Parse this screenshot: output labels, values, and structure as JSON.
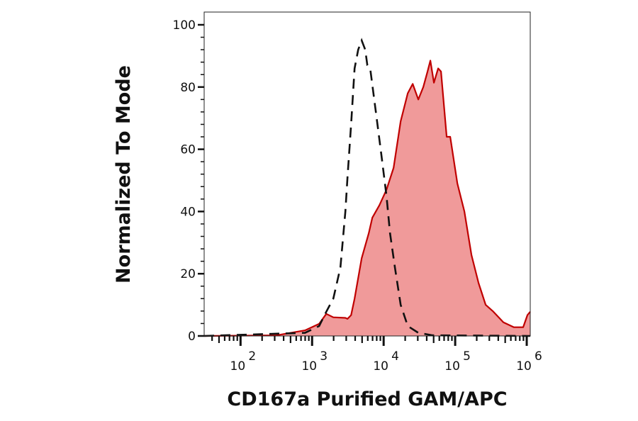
{
  "chart_data": {
    "type": "area",
    "title": "",
    "xlabel": "CD167a Purified GAM/APC",
    "ylabel": "Normalized To Mode",
    "xscale": "log",
    "xlim": [
      31,
      1120000
    ],
    "ylim": [
      0,
      100
    ],
    "grid": false,
    "x_tick_labels": [
      {
        "value": 100,
        "base": "10",
        "exp": "2"
      },
      {
        "value": 1000,
        "base": "10",
        "exp": "3"
      },
      {
        "value": 10000,
        "base": "10",
        "exp": "4"
      },
      {
        "value": 100000,
        "base": "10",
        "exp": "5"
      },
      {
        "value": 1000000,
        "base": "10",
        "exp": "6"
      }
    ],
    "y_ticks": [
      0,
      20,
      40,
      60,
      80,
      100
    ],
    "y_tick_labels": [
      "0",
      "20",
      "40",
      "60",
      "80",
      "100"
    ],
    "series": [
      {
        "style": "filled",
        "color": "#c00000",
        "fill": "#f09a9a",
        "x": [
          31,
          320,
          796,
          1256,
          1578,
          1982,
          2917,
          3126,
          3508,
          3926,
          4936,
          6197,
          6950,
          8730,
          10960,
          13770,
          17290,
          21730,
          25470,
          30550,
          35810,
          41100,
          44980,
          50460,
          57810,
          63390,
          76040,
          85300,
          107200,
          134600,
          169000,
          212300,
          266600,
          335000,
          471400,
          663400,
          891300,
          1023000,
          1120000
        ],
        "y": [
          0,
          0.2,
          1.8,
          3.9,
          7.1,
          6,
          5.8,
          5.5,
          6.7,
          12,
          25,
          33,
          38,
          42,
          47,
          54,
          69,
          78,
          81,
          76,
          80,
          85,
          88.5,
          81.4,
          86,
          85,
          64,
          64,
          49,
          40,
          26,
          17,
          10,
          8,
          4.4,
          2.8,
          2.8,
          6.7,
          7.8
        ]
      },
      {
        "style": "dashed",
        "color": "#111111",
        "x": [
          31,
          796,
          1256,
          1578,
          1982,
          2489,
          2917,
          3126,
          3508,
          3926,
          4406,
          4936,
          5534,
          5920,
          6490,
          7786,
          9330,
          10960,
          12270,
          14390,
          17290,
          21730,
          30550,
          48190,
          1120000
        ],
        "y": [
          0,
          1,
          3.2,
          7.8,
          12,
          22,
          40,
          51,
          68,
          86,
          92,
          95,
          92,
          87,
          86,
          72,
          58,
          45,
          33,
          22,
          10,
          3.2,
          1,
          0.2,
          0
        ]
      }
    ]
  }
}
